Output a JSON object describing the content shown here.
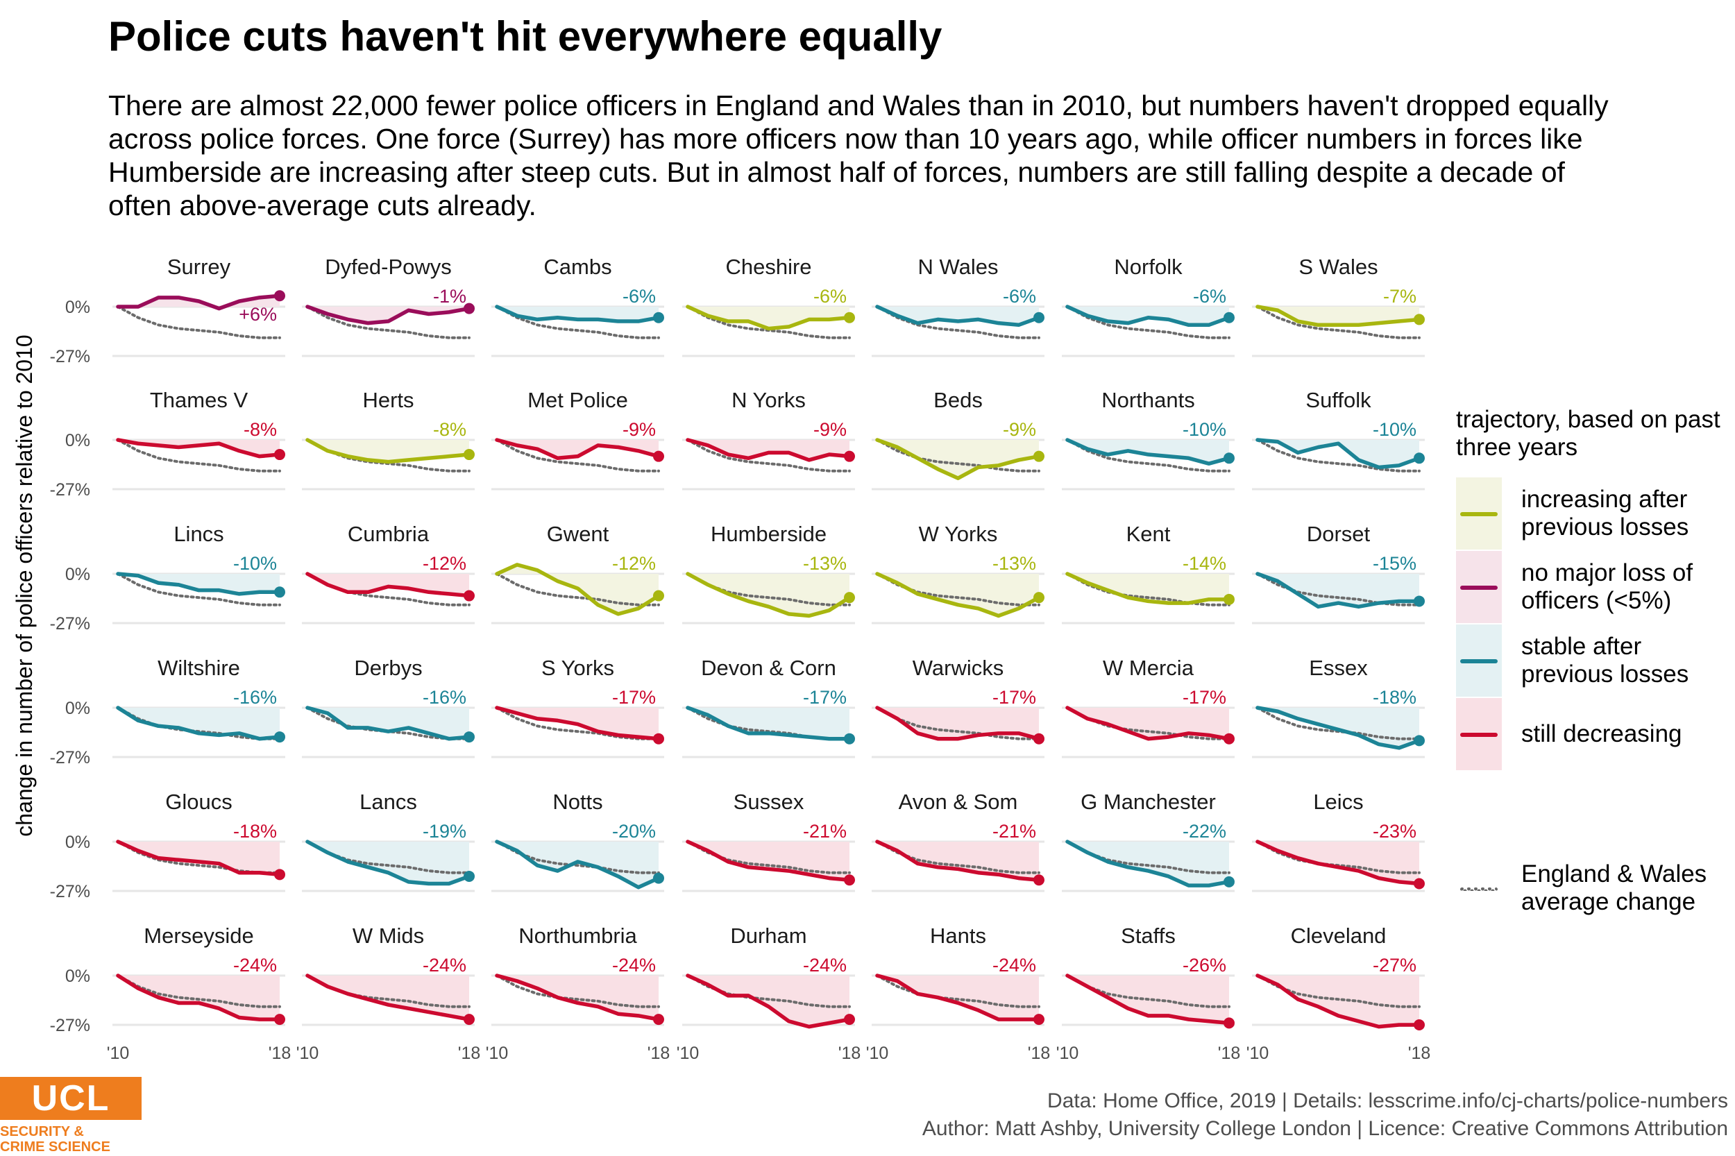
{
  "title": "Police cuts haven't hit everywhere equally",
  "subtitle": "There are almost 22,000 fewer police officers in England and Wales than in 2010, but numbers haven't dropped equally across police forces. One force (Surrey) has more officers now than 10 years ago, while officer numbers in forces like Humberside are increasing after steep cuts. But in almost half of forces, numbers are still falling despite a decade of often above-average cuts already.",
  "legend": {
    "title": "trajectory, based on past three years",
    "items": [
      {
        "key": "increasing",
        "label": "increasing after previous losses",
        "color": "#a8b60f",
        "fill": "#f3f4e1"
      },
      {
        "key": "noloss",
        "label": "no major loss of officers (<5%)",
        "color": "#9a0d5a",
        "fill": "#f6e3ea"
      },
      {
        "key": "stable",
        "label": "stable after previous losses",
        "color": "#1c8496",
        "fill": "#e4f1f3"
      },
      {
        "key": "decreasing",
        "label": "still decreasing",
        "color": "#cc0a2f",
        "fill": "#f9e0e5"
      }
    ],
    "average_label": "England & Wales average change"
  },
  "chart_data": {
    "type": "line",
    "ylabel": "change in number of police officers relative to 2010",
    "y_ticks": [
      "0%",
      "-27%"
    ],
    "x_ticks": [
      "'10",
      "'18"
    ],
    "ylim": [
      -30,
      8
    ],
    "years": [
      2010,
      2011,
      2012,
      2013,
      2014,
      2015,
      2016,
      2017,
      2018
    ],
    "average": [
      0,
      -6,
      -10,
      -12,
      -13,
      -14,
      -16,
      -17,
      -17
    ],
    "series": [
      {
        "name": "Surrey",
        "label": "+6%",
        "trajectory": "noloss",
        "values": [
          0,
          0,
          5,
          5,
          3,
          -1,
          3,
          5,
          6
        ]
      },
      {
        "name": "Dyfed-Powys",
        "label": "-1%",
        "trajectory": "noloss",
        "values": [
          0,
          -4,
          -7,
          -9,
          -8,
          -2,
          -4,
          -3,
          -1
        ]
      },
      {
        "name": "Cambs",
        "label": "-6%",
        "trajectory": "stable",
        "values": [
          0,
          -5,
          -7,
          -6,
          -7,
          -7,
          -8,
          -8,
          -6
        ]
      },
      {
        "name": "Cheshire",
        "label": "-6%",
        "trajectory": "increasing",
        "values": [
          0,
          -5,
          -8,
          -8,
          -12,
          -11,
          -7,
          -7,
          -6
        ]
      },
      {
        "name": "N Wales",
        "label": "-6%",
        "trajectory": "stable",
        "values": [
          0,
          -5,
          -9,
          -7,
          -8,
          -7,
          -9,
          -10,
          -6
        ]
      },
      {
        "name": "Norfolk",
        "label": "-6%",
        "trajectory": "stable",
        "values": [
          0,
          -5,
          -8,
          -9,
          -6,
          -7,
          -10,
          -10,
          -6
        ]
      },
      {
        "name": "S Wales",
        "label": "-7%",
        "trajectory": "increasing",
        "values": [
          0,
          -2,
          -8,
          -10,
          -10,
          -10,
          -9,
          -8,
          -7
        ]
      },
      {
        "name": "Thames V",
        "label": "-8%",
        "trajectory": "decreasing",
        "values": [
          0,
          -2,
          -3,
          -4,
          -3,
          -2,
          -6,
          -9,
          -8
        ]
      },
      {
        "name": "Herts",
        "label": "-8%",
        "trajectory": "increasing",
        "values": [
          0,
          -6,
          -9,
          -11,
          -12,
          -11,
          -10,
          -9,
          -8
        ]
      },
      {
        "name": "Met Police",
        "label": "-9%",
        "trajectory": "decreasing",
        "values": [
          0,
          -3,
          -5,
          -10,
          -9,
          -3,
          -4,
          -6,
          -9
        ]
      },
      {
        "name": "N Yorks",
        "label": "-9%",
        "trajectory": "decreasing",
        "values": [
          0,
          -3,
          -8,
          -10,
          -7,
          -7,
          -11,
          -8,
          -9
        ]
      },
      {
        "name": "Beds",
        "label": "-9%",
        "trajectory": "increasing",
        "values": [
          0,
          -4,
          -10,
          -16,
          -21,
          -15,
          -14,
          -11,
          -9
        ]
      },
      {
        "name": "Northants",
        "label": "-10%",
        "trajectory": "stable",
        "values": [
          0,
          -5,
          -8,
          -6,
          -8,
          -9,
          -10,
          -13,
          -10
        ]
      },
      {
        "name": "Suffolk",
        "label": "-10%",
        "trajectory": "stable",
        "values": [
          0,
          -1,
          -7,
          -4,
          -2,
          -11,
          -15,
          -14,
          -10
        ]
      },
      {
        "name": "Lincs",
        "label": "-10%",
        "trajectory": "stable",
        "values": [
          0,
          -1,
          -5,
          -6,
          -9,
          -9,
          -11,
          -10,
          -10
        ]
      },
      {
        "name": "Cumbria",
        "label": "-12%",
        "trajectory": "decreasing",
        "values": [
          0,
          -6,
          -10,
          -10,
          -7,
          -8,
          -10,
          -11,
          -12
        ]
      },
      {
        "name": "Gwent",
        "label": "-12%",
        "trajectory": "increasing",
        "values": [
          0,
          5,
          2,
          -4,
          -8,
          -17,
          -22,
          -19,
          -12
        ]
      },
      {
        "name": "Humberside",
        "label": "-13%",
        "trajectory": "increasing",
        "values": [
          0,
          -6,
          -11,
          -15,
          -18,
          -22,
          -23,
          -20,
          -13
        ]
      },
      {
        "name": "W Yorks",
        "label": "-13%",
        "trajectory": "increasing",
        "values": [
          0,
          -5,
          -11,
          -14,
          -17,
          -19,
          -23,
          -19,
          -13
        ]
      },
      {
        "name": "Kent",
        "label": "-14%",
        "trajectory": "increasing",
        "values": [
          0,
          -5,
          -9,
          -13,
          -15,
          -16,
          -16,
          -14,
          -14
        ]
      },
      {
        "name": "Dorset",
        "label": "-15%",
        "trajectory": "stable",
        "values": [
          0,
          -4,
          -11,
          -18,
          -16,
          -18,
          -16,
          -15,
          -15
        ]
      },
      {
        "name": "Wiltshire",
        "label": "-16%",
        "trajectory": "stable",
        "values": [
          0,
          -7,
          -10,
          -11,
          -14,
          -15,
          -14,
          -17,
          -16
        ]
      },
      {
        "name": "Derbys",
        "label": "-16%",
        "trajectory": "stable",
        "values": [
          0,
          -3,
          -11,
          -11,
          -13,
          -11,
          -14,
          -17,
          -16
        ]
      },
      {
        "name": "S Yorks",
        "label": "-17%",
        "trajectory": "decreasing",
        "values": [
          0,
          -3,
          -6,
          -7,
          -9,
          -13,
          -15,
          -16,
          -17
        ]
      },
      {
        "name": "Devon & Corn",
        "label": "-17%",
        "trajectory": "stable",
        "values": [
          0,
          -4,
          -10,
          -14,
          -14,
          -15,
          -16,
          -17,
          -17
        ]
      },
      {
        "name": "Warwicks",
        "label": "-17%",
        "trajectory": "decreasing",
        "values": [
          0,
          -6,
          -14,
          -17,
          -17,
          -15,
          -14,
          -14,
          -17
        ]
      },
      {
        "name": "W Mercia",
        "label": "-17%",
        "trajectory": "decreasing",
        "values": [
          0,
          -6,
          -9,
          -13,
          -17,
          -16,
          -14,
          -15,
          -17
        ]
      },
      {
        "name": "Essex",
        "label": "-18%",
        "trajectory": "stable",
        "values": [
          0,
          -2,
          -6,
          -9,
          -12,
          -15,
          -20,
          -22,
          -18
        ]
      },
      {
        "name": "Gloucs",
        "label": "-18%",
        "trajectory": "decreasing",
        "values": [
          0,
          -5,
          -9,
          -10,
          -11,
          -12,
          -17,
          -17,
          -18
        ]
      },
      {
        "name": "Lancs",
        "label": "-19%",
        "trajectory": "stable",
        "values": [
          0,
          -6,
          -11,
          -14,
          -17,
          -22,
          -23,
          -23,
          -19
        ]
      },
      {
        "name": "Notts",
        "label": "-20%",
        "trajectory": "stable",
        "values": [
          0,
          -5,
          -13,
          -16,
          -11,
          -14,
          -19,
          -25,
          -20
        ]
      },
      {
        "name": "Sussex",
        "label": "-21%",
        "trajectory": "decreasing",
        "values": [
          0,
          -5,
          -11,
          -14,
          -15,
          -16,
          -18,
          -20,
          -21
        ]
      },
      {
        "name": "Avon & Som",
        "label": "-21%",
        "trajectory": "decreasing",
        "values": [
          0,
          -5,
          -12,
          -14,
          -15,
          -17,
          -18,
          -20,
          -21
        ]
      },
      {
        "name": "G Manchester",
        "label": "-22%",
        "trajectory": "stable",
        "values": [
          0,
          -6,
          -11,
          -14,
          -16,
          -19,
          -24,
          -24,
          -22
        ]
      },
      {
        "name": "Leics",
        "label": "-23%",
        "trajectory": "decreasing",
        "values": [
          0,
          -5,
          -9,
          -12,
          -14,
          -16,
          -20,
          -22,
          -23
        ]
      },
      {
        "name": "Merseyside",
        "label": "-24%",
        "trajectory": "decreasing",
        "values": [
          0,
          -7,
          -12,
          -15,
          -15,
          -18,
          -23,
          -24,
          -24
        ]
      },
      {
        "name": "W Mids",
        "label": "-24%",
        "trajectory": "decreasing",
        "values": [
          0,
          -6,
          -10,
          -13,
          -16,
          -18,
          -20,
          -22,
          -24
        ]
      },
      {
        "name": "Northumbria",
        "label": "-24%",
        "trajectory": "decreasing",
        "values": [
          0,
          -3,
          -7,
          -12,
          -15,
          -17,
          -21,
          -22,
          -24
        ]
      },
      {
        "name": "Durham",
        "label": "-24%",
        "trajectory": "decreasing",
        "values": [
          0,
          -5,
          -11,
          -11,
          -17,
          -25,
          -28,
          -26,
          -24
        ]
      },
      {
        "name": "Hants",
        "label": "-24%",
        "trajectory": "decreasing",
        "values": [
          0,
          -3,
          -10,
          -12,
          -15,
          -19,
          -24,
          -24,
          -24
        ]
      },
      {
        "name": "Staffs",
        "label": "-26%",
        "trajectory": "decreasing",
        "values": [
          0,
          -6,
          -12,
          -18,
          -22,
          -22,
          -24,
          -25,
          -26
        ]
      },
      {
        "name": "Cleveland",
        "label": "-27%",
        "trajectory": "decreasing",
        "values": [
          0,
          -5,
          -13,
          -17,
          -22,
          -25,
          -28,
          -27,
          -27
        ]
      }
    ]
  },
  "logo": {
    "name": "UCL",
    "sub_line1": "SECURITY &",
    "sub_line2": "CRIME SCIENCE"
  },
  "credits": {
    "line1": "Data: Home Office, 2019 |  Details: lesscrime.info/cj-charts/police-numbers",
    "line2": "Author: Matt Ashby, University College London |  Licence: Creative Commons Attribution"
  }
}
